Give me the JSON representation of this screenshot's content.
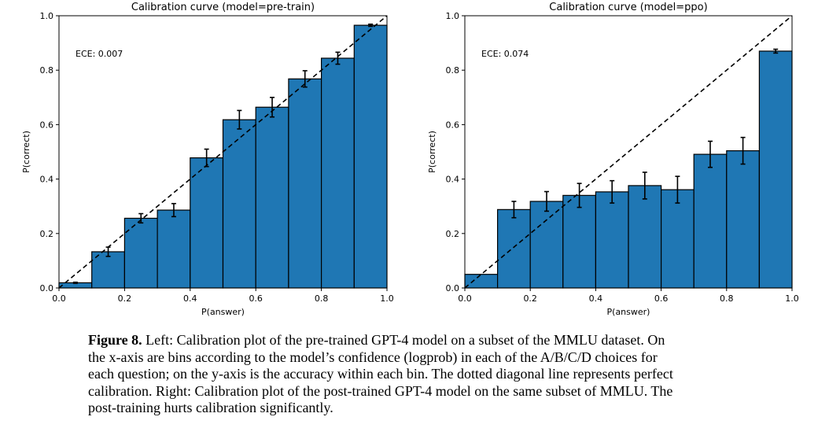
{
  "chart_data": [
    {
      "type": "bar",
      "title": "Calibration curve (model=pre-train)",
      "xlabel": "P(answer)",
      "ylabel": "P(correct)",
      "annotation": "ECE: 0.007",
      "xlim": [
        0,
        1
      ],
      "ylim": [
        0,
        1
      ],
      "xticks": [
        "0.0",
        "0.2",
        "0.4",
        "0.6",
        "0.8",
        "1.0"
      ],
      "yticks": [
        "0.0",
        "0.2",
        "0.4",
        "0.6",
        "0.8",
        "1.0"
      ],
      "bin_edges": [
        0,
        0.1,
        0.2,
        0.3,
        0.4,
        0.5,
        0.6,
        0.7,
        0.8,
        0.9,
        1.0
      ],
      "values": [
        0.019,
        0.133,
        0.256,
        0.286,
        0.478,
        0.618,
        0.664,
        0.768,
        0.844,
        0.965
      ],
      "errors": [
        0.002,
        0.017,
        0.017,
        0.024,
        0.032,
        0.034,
        0.036,
        0.03,
        0.022,
        0.004
      ],
      "reference_line": "diagonal dashed",
      "bar_color": "#1f77b4",
      "grid": false
    },
    {
      "type": "bar",
      "title": "Calibration curve (model=ppo)",
      "xlabel": "P(answer)",
      "ylabel": "P(correct)",
      "annotation": "ECE: 0.074",
      "xlim": [
        0,
        1
      ],
      "ylim": [
        0,
        1
      ],
      "xticks": [
        "0.0",
        "0.2",
        "0.4",
        "0.6",
        "0.8",
        "1.0"
      ],
      "yticks": [
        "0.0",
        "0.2",
        "0.4",
        "0.6",
        "0.8",
        "1.0"
      ],
      "bin_edges": [
        0,
        0.1,
        0.2,
        0.3,
        0.4,
        0.5,
        0.6,
        0.7,
        0.8,
        0.9,
        1.0
      ],
      "values": [
        0.05,
        0.288,
        0.318,
        0.34,
        0.353,
        0.376,
        0.361,
        0.491,
        0.504,
        0.87
      ],
      "errors": [
        0.0,
        0.03,
        0.036,
        0.044,
        0.041,
        0.049,
        0.049,
        0.048,
        0.049,
        0.007
      ],
      "reference_line": "diagonal dashed",
      "bar_color": "#1f77b4",
      "grid": false
    }
  ],
  "caption": {
    "label": "Figure 8.",
    "lines": [
      " Left: Calibration plot of the pre-trained GPT-4 model on a subset of the MMLU dataset. On",
      "the x-axis are bins according to the model’s confidence (logprob) in each of the A/B/C/D choices for",
      "each question; on the y-axis is the accuracy within each bin. The dotted diagonal line represents perfect",
      "calibration. Right: Calibration plot of the post-trained GPT-4 model on the same subset of MMLU. The",
      "post-training hurts calibration significantly."
    ]
  }
}
